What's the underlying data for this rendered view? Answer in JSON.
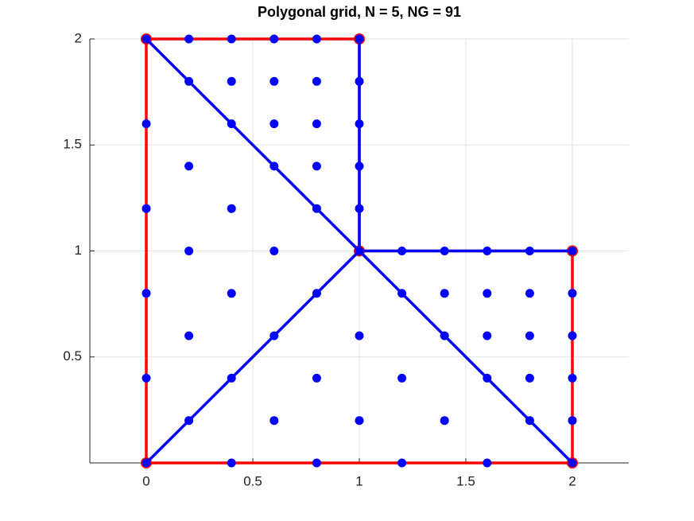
{
  "chart_data": {
    "type": "scatter",
    "title": "Polygonal grid, N = 5, NG = 91",
    "xlim": [
      -0.265,
      2.265
    ],
    "ylim": [
      0,
      2
    ],
    "xticks": [
      0,
      0.5,
      1,
      1.5,
      2
    ],
    "yticks": [
      0.5,
      1,
      1.5,
      2
    ],
    "grid": true,
    "series": [
      {
        "style": "line",
        "color": "#ff0000",
        "x": [
          0,
          2,
          2,
          1,
          1,
          0,
          0
        ],
        "y": [
          0,
          0,
          1,
          1,
          2,
          2,
          0
        ]
      },
      {
        "style": "marker",
        "color": "#ff0000",
        "x": [
          0,
          2,
          2,
          1,
          1,
          0
        ],
        "y": [
          0,
          0,
          1,
          1,
          2,
          2
        ]
      },
      {
        "style": "line",
        "color": "#0000ff",
        "x": [
          1,
          0,
          null,
          1,
          0,
          null,
          1,
          2,
          null,
          1,
          1,
          null,
          1,
          2
        ],
        "y": [
          1,
          2,
          null,
          1,
          0,
          null,
          1,
          0,
          null,
          1,
          2,
          null,
          1,
          1
        ]
      },
      {
        "style": "marker",
        "color": "#0000ff",
        "x": [
          0,
          0.2,
          0.4,
          0.6,
          0.8,
          1,
          0.2,
          0.4,
          0.6,
          0.8,
          1,
          0,
          0.4,
          0.6,
          0.8,
          1,
          0.2,
          0.6,
          0.8,
          1,
          0,
          0.4,
          0.8,
          1,
          0.2,
          0.6,
          1,
          1.2,
          1.4,
          1.6,
          1.8,
          2,
          0,
          0.4,
          0.8,
          1.2,
          1.4,
          1.6,
          1.8,
          2,
          0.2,
          0.6,
          1,
          1.4,
          1.6,
          1.8,
          2,
          0,
          0.4,
          0.8,
          1.2,
          1.6,
          1.8,
          2,
          0.2,
          0.6,
          1,
          1.4,
          1.8,
          2,
          0,
          0.4,
          0.8,
          1.2,
          1.6,
          2
        ],
        "y": [
          2,
          2,
          2,
          2,
          2,
          2,
          1.8,
          1.8,
          1.8,
          1.8,
          1.8,
          1.6,
          1.6,
          1.6,
          1.6,
          1.6,
          1.4,
          1.4,
          1.4,
          1.4,
          1.2,
          1.2,
          1.2,
          1.2,
          1,
          1,
          1,
          1,
          1,
          1,
          1,
          1,
          0.8,
          0.8,
          0.8,
          0.8,
          0.8,
          0.8,
          0.8,
          0.8,
          0.6,
          0.6,
          0.6,
          0.6,
          0.6,
          0.6,
          0.6,
          0.4,
          0.4,
          0.4,
          0.4,
          0.4,
          0.4,
          0.4,
          0.2,
          0.2,
          0.2,
          0.2,
          0.2,
          0.2,
          0,
          0,
          0,
          0,
          0,
          0
        ]
      }
    ]
  }
}
